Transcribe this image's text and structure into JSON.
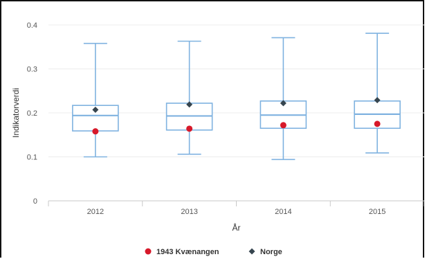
{
  "chart_data": {
    "type": "boxplot",
    "xlabel": "År",
    "ylabel": "Indikatorverdi",
    "ylim": [
      0,
      0.4
    ],
    "yticks": [
      0,
      0.1,
      0.2,
      0.3,
      0.4
    ],
    "ytick_labels": [
      "0",
      "0.1",
      "0.2",
      "0.3",
      "0.4"
    ],
    "categories": [
      "2012",
      "2013",
      "2014",
      "2015"
    ],
    "grid": true,
    "legend_position": "bottom",
    "box_color": "#7fb2e0",
    "boxes": [
      {
        "min": 0.1,
        "q1": 0.159,
        "median": 0.194,
        "q3": 0.217,
        "max": 0.358
      },
      {
        "min": 0.106,
        "q1": 0.161,
        "median": 0.193,
        "q3": 0.222,
        "max": 0.363
      },
      {
        "min": 0.094,
        "q1": 0.165,
        "median": 0.195,
        "q3": 0.227,
        "max": 0.371
      },
      {
        "min": 0.109,
        "q1": 0.165,
        "median": 0.197,
        "q3": 0.227,
        "max": 0.381
      }
    ],
    "series": [
      {
        "name": "1943 Kvænangen",
        "marker": "circle",
        "color": "#d7192a",
        "values": [
          0.158,
          0.164,
          0.172,
          0.175
        ]
      },
      {
        "name": "Norge",
        "marker": "diamond",
        "color": "#36454f",
        "values": [
          0.207,
          0.219,
          0.222,
          0.229
        ]
      }
    ]
  }
}
